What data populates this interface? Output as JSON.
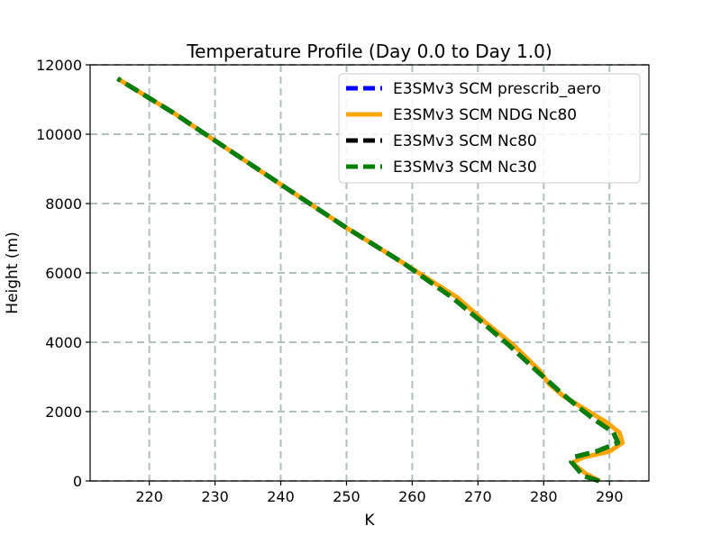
{
  "chart_data": {
    "type": "line",
    "title": "Temperature Profile (Day 0.0 to Day 1.0)",
    "xlabel": "K",
    "ylabel": "Height (m)",
    "xlim": [
      211,
      296
    ],
    "ylim": [
      0,
      12000
    ],
    "xticks": [
      220,
      230,
      240,
      250,
      260,
      270,
      280,
      290
    ],
    "yticks": [
      0,
      2000,
      4000,
      6000,
      8000,
      10000,
      12000
    ],
    "grid": true,
    "legend_position": "top-right",
    "series": [
      {
        "name": "E3SMv3 SCM prescrib_aero",
        "color": "#0000ff",
        "style": "dashed",
        "x": [
          288.4,
          286.0,
          284.2,
          284.8,
          288.0,
          291.3,
          290.6,
          287.5,
          284.8,
          282.3,
          278.8,
          274.8,
          270.5,
          266.0,
          258.5,
          250.0,
          241.2,
          232.5,
          223.8,
          215.2
        ],
        "y": [
          0,
          150,
          550,
          700,
          850,
          1100,
          1400,
          1800,
          2200,
          2600,
          3200,
          3900,
          4600,
          5300,
          6300,
          7300,
          8400,
          9500,
          10600,
          11600
        ]
      },
      {
        "name": "E3SMv3 SCM NDG Nc80",
        "color": "#ffa500",
        "style": "solid",
        "x": [
          288.5,
          286.5,
          284.3,
          286.0,
          290.0,
          292.0,
          291.5,
          289.5,
          286.0,
          283.0,
          280.8,
          279.3,
          275.5,
          271.0,
          266.8,
          258.5,
          250.0,
          241.2,
          232.5,
          223.8,
          215.2
        ],
        "y": [
          0,
          200,
          520,
          680,
          850,
          1100,
          1400,
          1700,
          2100,
          2450,
          2800,
          3200,
          3900,
          4600,
          5300,
          6300,
          7300,
          8400,
          9500,
          10600,
          11600
        ]
      },
      {
        "name": "E3SMv3 SCM Nc80",
        "color": "#000000",
        "style": "dashed",
        "x": [
          288.4,
          286.0,
          284.2,
          284.8,
          288.0,
          291.3,
          290.6,
          287.5,
          284.8,
          282.3,
          278.8,
          274.8,
          270.5,
          266.0,
          258.5,
          250.0,
          241.2,
          232.5,
          223.8,
          215.2
        ],
        "y": [
          0,
          150,
          550,
          700,
          850,
          1100,
          1400,
          1800,
          2200,
          2600,
          3200,
          3900,
          4600,
          5300,
          6300,
          7300,
          8400,
          9500,
          10600,
          11600
        ]
      },
      {
        "name": "E3SMv3 SCM Nc30",
        "color": "#008000",
        "style": "dashed",
        "x": [
          288.4,
          286.0,
          284.2,
          284.8,
          288.0,
          291.3,
          290.6,
          287.5,
          284.8,
          282.3,
          278.8,
          274.8,
          270.5,
          266.0,
          258.5,
          250.0,
          241.2,
          232.5,
          223.8,
          215.2
        ],
        "y": [
          0,
          150,
          550,
          700,
          850,
          1100,
          1400,
          1800,
          2200,
          2600,
          3200,
          3900,
          4600,
          5300,
          6300,
          7300,
          8400,
          9500,
          10600,
          11600
        ]
      }
    ]
  }
}
